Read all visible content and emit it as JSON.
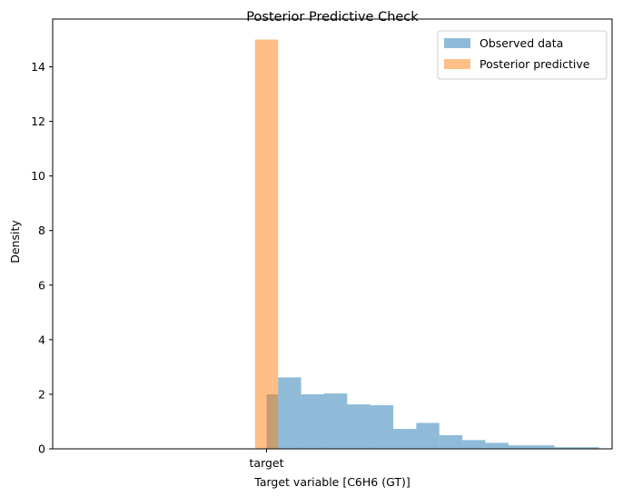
{
  "chart_data": {
    "type": "bar",
    "title": "Posterior Predictive Check",
    "xlabel": "Target variable [C6H6 (GT)]",
    "ylabel": "Density",
    "ylim": [
      0,
      15.75
    ],
    "yticks": [
      0,
      2,
      4,
      6,
      8,
      10,
      12,
      14
    ],
    "xticks": [
      {
        "label": "target",
        "x": 0.5
      }
    ],
    "xlim": [
      -0.8,
      2.6
    ],
    "grid": false,
    "legend_position": "top-right",
    "series": [
      {
        "name": "Observed data",
        "color": "#1f77b4",
        "opacity": 0.5,
        "bins": [
          {
            "x0": 0.5,
            "x1": 0.57,
            "value": 2.0
          },
          {
            "x0": 0.57,
            "x1": 0.71,
            "value": 2.62
          },
          {
            "x0": 0.71,
            "x1": 0.85,
            "value": 2.0
          },
          {
            "x0": 0.85,
            "x1": 0.99,
            "value": 2.03
          },
          {
            "x0": 0.99,
            "x1": 1.13,
            "value": 1.63
          },
          {
            "x0": 1.13,
            "x1": 1.27,
            "value": 1.6
          },
          {
            "x0": 1.27,
            "x1": 1.41,
            "value": 0.73
          },
          {
            "x0": 1.41,
            "x1": 1.55,
            "value": 0.95
          },
          {
            "x0": 1.55,
            "x1": 1.69,
            "value": 0.5
          },
          {
            "x0": 1.69,
            "x1": 1.83,
            "value": 0.32
          },
          {
            "x0": 1.83,
            "x1": 1.97,
            "value": 0.22
          },
          {
            "x0": 1.97,
            "x1": 2.11,
            "value": 0.13
          },
          {
            "x0": 2.11,
            "x1": 2.25,
            "value": 0.13
          },
          {
            "x0": 2.25,
            "x1": 2.39,
            "value": 0.06
          },
          {
            "x0": 2.39,
            "x1": 2.52,
            "value": 0.06
          }
        ]
      },
      {
        "name": "Posterior predictive",
        "color": "#ff7f0e",
        "opacity": 0.5,
        "bins": [
          {
            "x0": 0.43,
            "x1": 0.57,
            "value": 15.0
          }
        ]
      }
    ]
  }
}
